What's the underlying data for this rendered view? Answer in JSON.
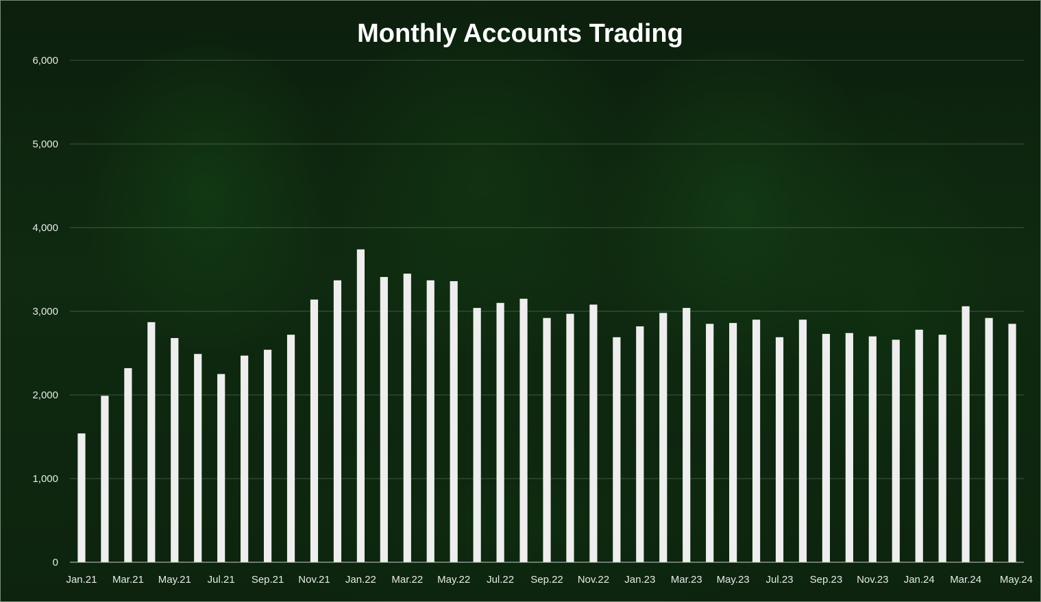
{
  "chart_data": {
    "type": "bar",
    "title": "Monthly Accounts Trading",
    "xlabel": "",
    "ylabel": "",
    "ylim": [
      0,
      6000
    ],
    "yticks": [
      "0",
      "1,000",
      "2,000",
      "3,000",
      "4,000",
      "5,000",
      "6,000"
    ],
    "ytick_values": [
      0,
      1000,
      2000,
      3000,
      4000,
      5000,
      6000
    ],
    "grid": true,
    "legend": "none",
    "bar_color": "#eeeeee",
    "categories": [
      "Jan.21",
      "Feb.21",
      "Mar.21",
      "Apr.21",
      "May.21",
      "Jun.21",
      "Jul.21",
      "Aug.21",
      "Sep.21",
      "Oct.21",
      "Nov.21",
      "Dec.21",
      "Jan.22",
      "Feb.22",
      "Mar.22",
      "Apr.22",
      "May.22",
      "Jun.22",
      "Jul.22",
      "Aug.22",
      "Sep.22",
      "Oct.22",
      "Nov.22",
      "Dec.22",
      "Jan.23",
      "Feb.23",
      "Mar.23",
      "Apr.23",
      "May.23",
      "Jun.23",
      "Jul.23",
      "Aug.23",
      "Sep.23",
      "Oct.23",
      "Nov.23",
      "Dec.23",
      "Jan.24",
      "Feb.24",
      "Mar.24",
      "Apr.24",
      "May.24"
    ],
    "shown_tick_labels": [
      "Jan.21",
      "Mar.21",
      "May.21",
      "Jul.21",
      "Sep.21",
      "Nov.21",
      "Jan.22",
      "Mar.22",
      "May.22",
      "Jul.22",
      "Sep.22",
      "Nov.22",
      "Jan.23",
      "Mar.23",
      "May.23",
      "Jul.23",
      "Sep.23",
      "Nov.23",
      "Jan.24",
      "Mar.24",
      "May.24"
    ],
    "values": [
      1540,
      1990,
      2320,
      2870,
      2680,
      2490,
      2250,
      2470,
      2540,
      2720,
      3140,
      3370,
      3740,
      3410,
      3450,
      3370,
      3360,
      3040,
      3100,
      3150,
      2920,
      2970,
      3080,
      2690,
      2820,
      2980,
      3040,
      2850,
      2860,
      2900,
      2690,
      2900,
      2730,
      2740,
      2700,
      2660,
      2780,
      2720,
      3060,
      2920,
      2850
    ]
  }
}
